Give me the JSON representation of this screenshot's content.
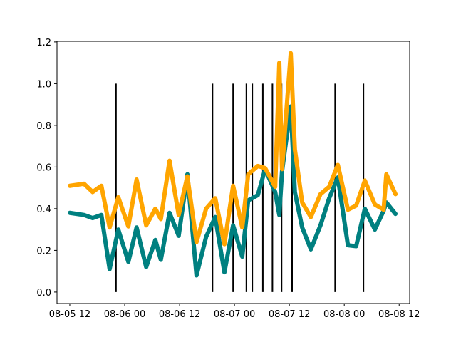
{
  "chart_data": {
    "type": "line",
    "x": [
      12,
      15.1,
      17.0,
      18.9,
      20.7,
      22.6,
      24.8,
      26.6,
      28.7,
      30.7,
      31.9,
      33.8,
      35.8,
      37.7,
      39.7,
      41.8,
      43.8,
      45.8,
      47.7,
      49.7,
      51.0,
      53.1,
      54.7,
      56.9,
      57.8,
      58.4,
      60.3,
      61.2,
      62.8,
      64.7,
      66.8,
      68.7,
      70.6,
      72.8,
      74.6,
      76.5,
      78.7,
      80.6,
      81.2,
      83.2
    ],
    "series": [
      {
        "color": "#008080",
        "values": [
          0.38,
          0.37,
          0.355,
          0.37,
          0.11,
          0.3,
          0.145,
          0.31,
          0.12,
          0.25,
          0.155,
          0.38,
          0.27,
          0.565,
          0.08,
          0.265,
          0.36,
          0.095,
          0.32,
          0.17,
          0.44,
          0.465,
          0.59,
          0.48,
          0.37,
          0.58,
          0.89,
          0.48,
          0.31,
          0.205,
          0.32,
          0.45,
          0.55,
          0.225,
          0.22,
          0.4,
          0.3,
          0.39,
          0.43,
          0.375
        ]
      },
      {
        "color": "#ffa500",
        "values": [
          0.51,
          0.52,
          0.48,
          0.51,
          0.31,
          0.455,
          0.315,
          0.54,
          0.32,
          0.4,
          0.35,
          0.63,
          0.37,
          0.555,
          0.24,
          0.4,
          0.45,
          0.23,
          0.51,
          0.31,
          0.565,
          0.605,
          0.595,
          0.505,
          1.1,
          0.59,
          1.146,
          0.685,
          0.43,
          0.36,
          0.47,
          0.505,
          0.61,
          0.395,
          0.415,
          0.535,
          0.42,
          0.395,
          0.565,
          0.47
        ]
      }
    ],
    "vlines": {
      "x": [
        22.1,
        43.2,
        47.7,
        50.6,
        51.9,
        54.2,
        56.3,
        58.3,
        60.6,
        70.0,
        76.2
      ],
      "ymin": 0,
      "ymax": 1,
      "color": "#000000"
    },
    "xlim": [
      9.2,
      86.3
    ],
    "xticks": [
      {
        "value": 12,
        "label": "08-05 12"
      },
      {
        "value": 24,
        "label": "08-06 00"
      },
      {
        "value": 36,
        "label": "08-06 12"
      },
      {
        "value": 48,
        "label": "08-07 00"
      },
      {
        "value": 60,
        "label": "08-07 12"
      },
      {
        "value": 72,
        "label": "08-08 00"
      },
      {
        "value": 84,
        "label": "08-08 12"
      }
    ],
    "ylim": [
      -0.055,
      1.203
    ],
    "yticks": [
      {
        "value": 0,
        "label": "0.0"
      },
      0.2,
      0.4,
      0.6,
      0.8,
      {
        "value": 1,
        "label": "1.0"
      },
      1.2
    ],
    "grid": false
  }
}
